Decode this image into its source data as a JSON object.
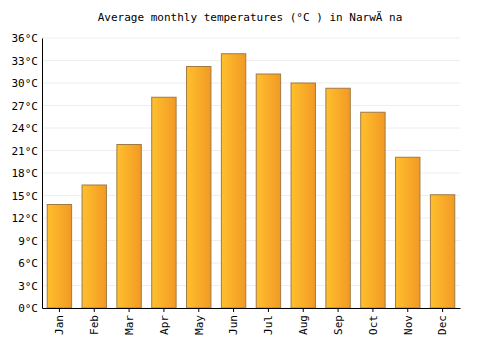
{
  "chart_data": {
    "type": "bar",
    "title": "Average monthly temperatures (°C ) in NarwÄ na",
    "categories": [
      "Jan",
      "Feb",
      "Mar",
      "Apr",
      "May",
      "Jun",
      "Jul",
      "Aug",
      "Sep",
      "Oct",
      "Nov",
      "Dec"
    ],
    "values": [
      13.8,
      16.4,
      21.8,
      28.1,
      32.2,
      33.9,
      31.2,
      30.0,
      29.3,
      26.1,
      20.1,
      15.1
    ],
    "color": "#ffa126",
    "ylim": [
      0,
      36
    ],
    "yticks": [
      {
        "value": 0,
        "label": "0°C"
      },
      {
        "value": 3,
        "label": "3°C"
      },
      {
        "value": 6,
        "label": "6°C"
      },
      {
        "value": 9,
        "label": "9°C"
      },
      {
        "value": 12,
        "label": "12°C"
      },
      {
        "value": 15,
        "label": "15°C"
      },
      {
        "value": 18,
        "label": "18°C"
      },
      {
        "value": 21,
        "label": "21°C"
      },
      {
        "value": 24,
        "label": "24°C"
      },
      {
        "value": 27,
        "label": "27°C"
      },
      {
        "value": 30,
        "label": "30°C"
      },
      {
        "value": 33,
        "label": "33°C"
      },
      {
        "value": 36,
        "label": "36°C"
      }
    ],
    "grid": true
  }
}
